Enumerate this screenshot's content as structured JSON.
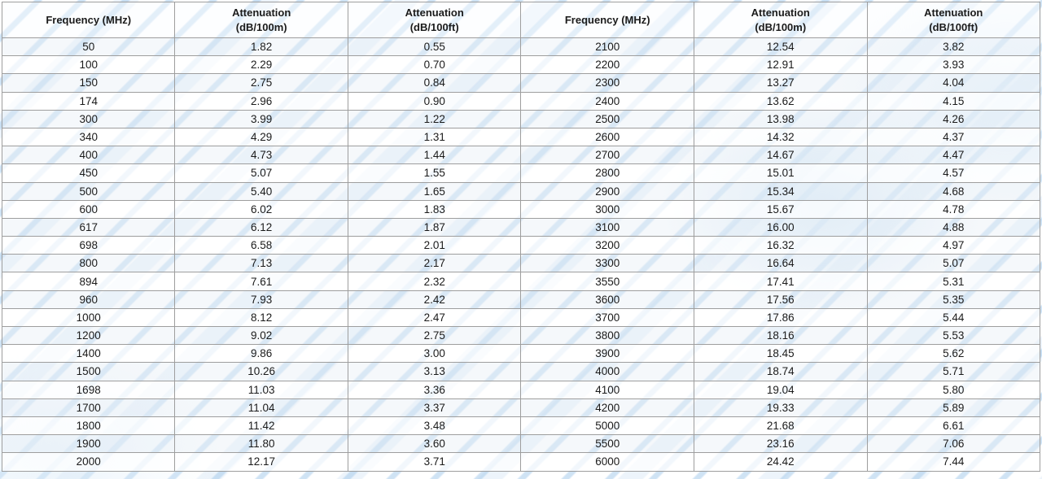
{
  "colors": {
    "border": "#9e9e9e",
    "outer_border": "#7f7f7f",
    "text": "#1b1b1b",
    "stripe_watermark": "#a8ccec",
    "row_tint": "#e7eef5",
    "background": "#ffffff"
  },
  "table": {
    "headers": [
      {
        "line1": "Frequency (MHz)",
        "line2": ""
      },
      {
        "line1": "Attenuation",
        "line2": "(dB/100m)"
      },
      {
        "line1": "Attenuation",
        "line2": "(dB/100ft)"
      },
      {
        "line1": "Frequency (MHz)",
        "line2": ""
      },
      {
        "line1": "Attenuation",
        "line2": "(dB/100m)"
      },
      {
        "line1": "Attenuation",
        "line2": "(dB/100ft)"
      }
    ],
    "rows": [
      [
        "50",
        "1.82",
        "0.55",
        "2100",
        "12.54",
        "3.82"
      ],
      [
        "100",
        "2.29",
        "0.70",
        "2200",
        "12.91",
        "3.93"
      ],
      [
        "150",
        "2.75",
        "0.84",
        "2300",
        "13.27",
        "4.04"
      ],
      [
        "174",
        "2.96",
        "0.90",
        "2400",
        "13.62",
        "4.15"
      ],
      [
        "300",
        "3.99",
        "1.22",
        "2500",
        "13.98",
        "4.26"
      ],
      [
        "340",
        "4.29",
        "1.31",
        "2600",
        "14.32",
        "4.37"
      ],
      [
        "400",
        "4.73",
        "1.44",
        "2700",
        "14.67",
        "4.47"
      ],
      [
        "450",
        "5.07",
        "1.55",
        "2800",
        "15.01",
        "4.57"
      ],
      [
        "500",
        "5.40",
        "1.65",
        "2900",
        "15.34",
        "4.68"
      ],
      [
        "600",
        "6.02",
        "1.83",
        "3000",
        "15.67",
        "4.78"
      ],
      [
        "617",
        "6.12",
        "1.87",
        "3100",
        "16.00",
        "4.88"
      ],
      [
        "698",
        "6.58",
        "2.01",
        "3200",
        "16.32",
        "4.97"
      ],
      [
        "800",
        "7.13",
        "2.17",
        "3300",
        "16.64",
        "5.07"
      ],
      [
        "894",
        "7.61",
        "2.32",
        "3550",
        "17.41",
        "5.31"
      ],
      [
        "960",
        "7.93",
        "2.42",
        "3600",
        "17.56",
        "5.35"
      ],
      [
        "1000",
        "8.12",
        "2.47",
        "3700",
        "17.86",
        "5.44"
      ],
      [
        "1200",
        "9.02",
        "2.75",
        "3800",
        "18.16",
        "5.53"
      ],
      [
        "1400",
        "9.86",
        "3.00",
        "3900",
        "18.45",
        "5.62"
      ],
      [
        "1500",
        "10.26",
        "3.13",
        "4000",
        "18.74",
        "5.71"
      ],
      [
        "1698",
        "11.03",
        "3.36",
        "4100",
        "19.04",
        "5.80"
      ],
      [
        "1700",
        "11.04",
        "3.37",
        "4200",
        "19.33",
        "5.89"
      ],
      [
        "1800",
        "11.42",
        "3.48",
        "5000",
        "21.68",
        "6.61"
      ],
      [
        "1900",
        "11.80",
        "3.60",
        "5500",
        "23.16",
        "7.06"
      ],
      [
        "2000",
        "12.17",
        "3.71",
        "6000",
        "24.42",
        "7.44"
      ]
    ]
  }
}
